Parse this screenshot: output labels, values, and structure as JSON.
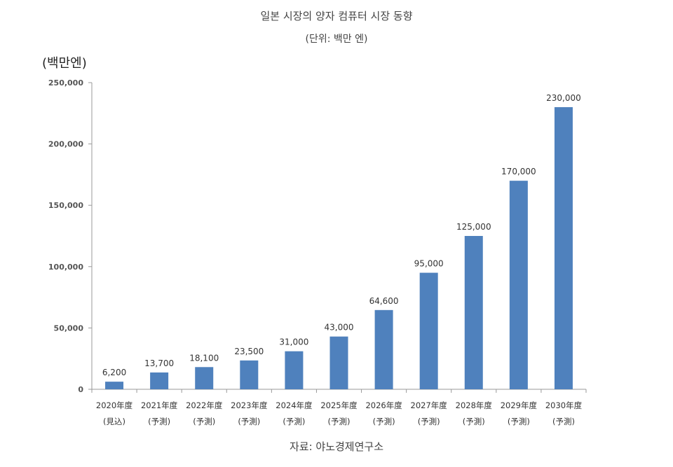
{
  "chart_data": {
    "type": "bar",
    "title": "일본 시장의 양자 컴퓨터 시장 동향",
    "subtitle": "(단위: 백만 엔)",
    "ylabel": "(백만엔)",
    "source": "자료: 야노경제연구소",
    "categories": [
      "2020年度",
      "2021年度",
      "2022年度",
      "2023年度",
      "2024年度",
      "2025年度",
      "2026年度",
      "2027年度",
      "2028年度",
      "2029年度",
      "2030年度"
    ],
    "category_notes": [
      "(見込)",
      "(予測)",
      "(予測)",
      "(予測)",
      "(予測)",
      "(予測)",
      "(予測)",
      "(予測)",
      "(予測)",
      "(予測)",
      "(予測)"
    ],
    "values": [
      6200,
      13700,
      18100,
      23500,
      31000,
      43000,
      64600,
      95000,
      125000,
      170000,
      230000
    ],
    "data_labels": [
      "6,200",
      "13,700",
      "18,100",
      "23,500",
      "31,000",
      "43,000",
      "64,600",
      "95,000",
      "125,000",
      "170,000",
      "230,000"
    ],
    "ylim": [
      0,
      250000
    ],
    "yticks": [
      "0",
      "50,000",
      "100,000",
      "150,000",
      "200,000",
      "250,000"
    ],
    "grid": false,
    "bar_color": "#4f81bd"
  }
}
